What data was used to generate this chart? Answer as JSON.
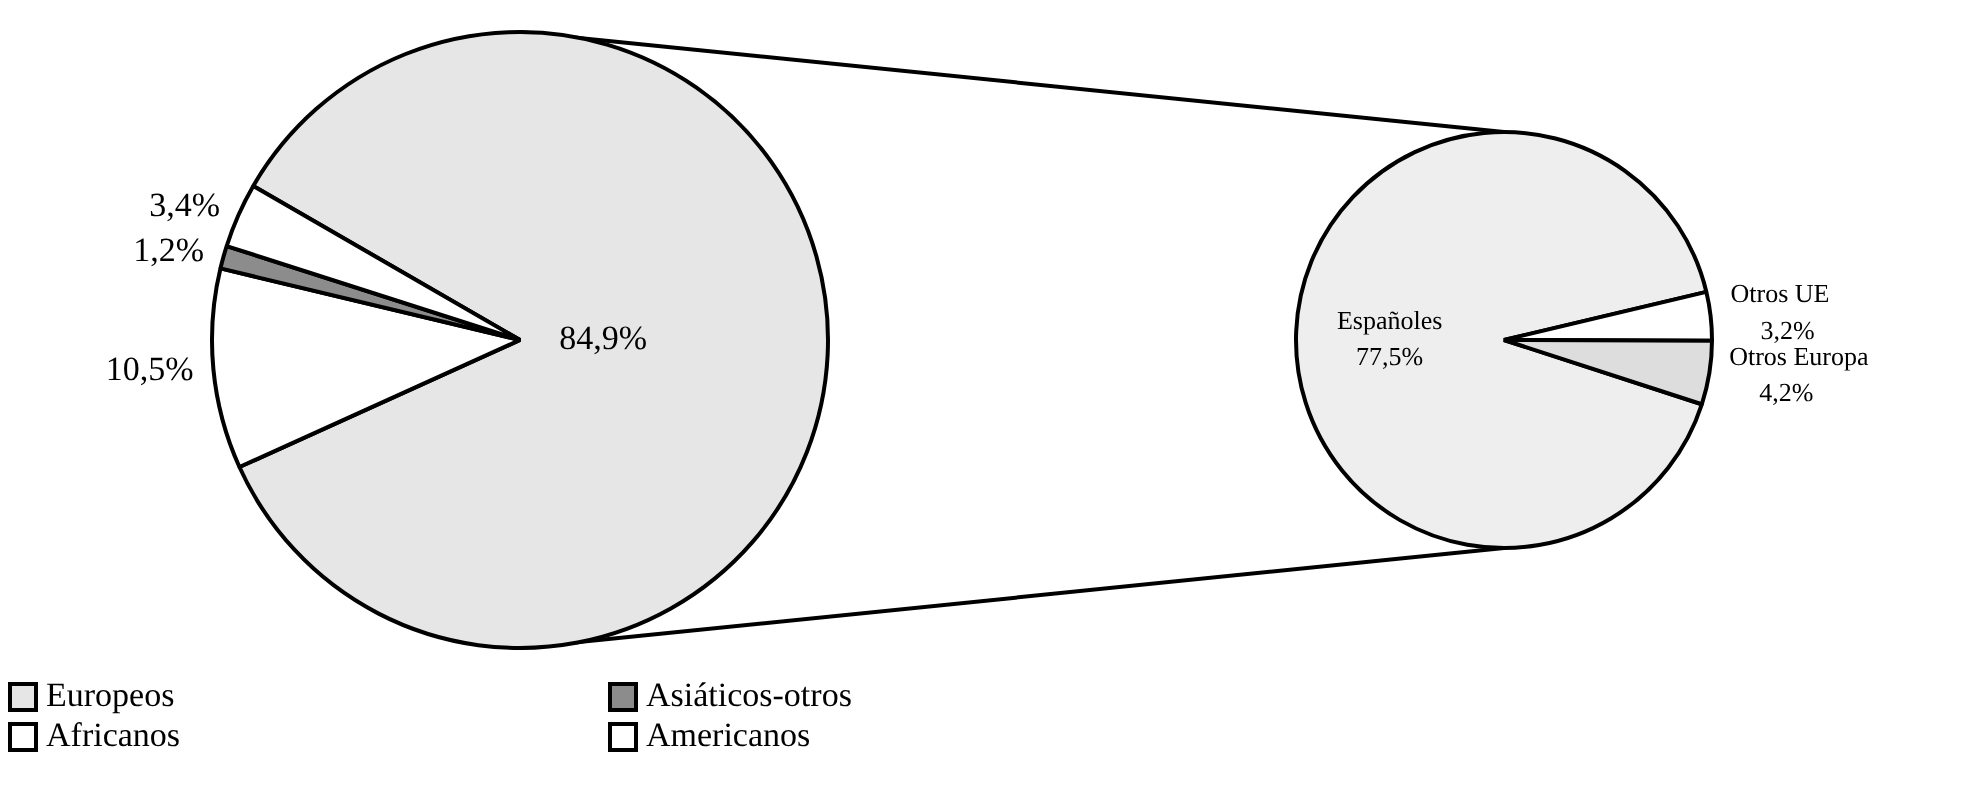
{
  "chart_data": [
    {
      "type": "pie",
      "categories": [
        "Europeos",
        "Africanos",
        "Asiáticos-otros",
        "Americanos"
      ],
      "values": [
        84.9,
        10.5,
        1.2,
        3.4
      ],
      "colors": [
        "#e6e6e6",
        "#ffffff",
        "#8c8c8c",
        "#ffffff"
      ],
      "value_labels": [
        "84,9%",
        "10,5%",
        "1,2%",
        "3,4%"
      ],
      "legend": "bottom left"
    },
    {
      "type": "pie",
      "categories": [
        "Españoles",
        "Otros UE",
        "Otros Europa"
      ],
      "values": [
        77.5,
        3.2,
        4.2
      ],
      "colors": [
        "#eeeeee",
        "#ffffff",
        "#dddddd"
      ],
      "value_labels": [
        "77,5%",
        "3,2%",
        "4,2%"
      ],
      "legend": false
    }
  ]
}
